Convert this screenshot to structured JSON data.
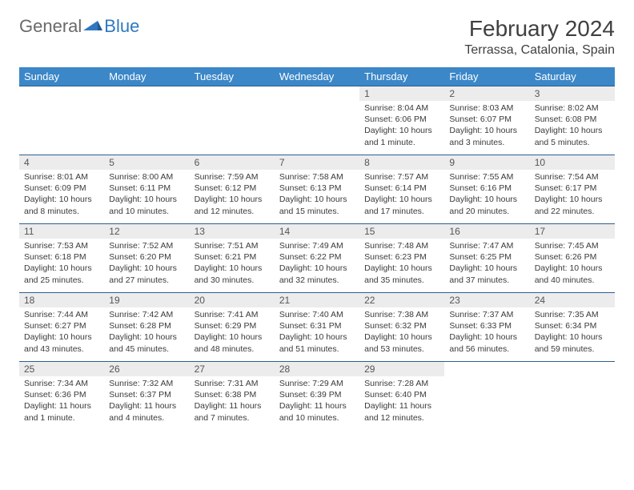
{
  "brand": {
    "part1": "General",
    "part2": "Blue"
  },
  "title": "February 2024",
  "location": "Terrassa, Catalonia, Spain",
  "colors": {
    "header_bg": "#3b87c8",
    "header_text": "#ffffff",
    "daynum_bg": "#ececec",
    "rule": "#2f5f8f",
    "body_text": "#3a3a3a",
    "logo_gray": "#6a6a6a",
    "logo_blue": "#2f78c0"
  },
  "weekdays": [
    "Sunday",
    "Monday",
    "Tuesday",
    "Wednesday",
    "Thursday",
    "Friday",
    "Saturday"
  ],
  "cells": [
    [
      {
        "n": "",
        "sr": "",
        "ss": "",
        "dl": ""
      },
      {
        "n": "",
        "sr": "",
        "ss": "",
        "dl": ""
      },
      {
        "n": "",
        "sr": "",
        "ss": "",
        "dl": ""
      },
      {
        "n": "",
        "sr": "",
        "ss": "",
        "dl": ""
      },
      {
        "n": "1",
        "sr": "Sunrise: 8:04 AM",
        "ss": "Sunset: 6:06 PM",
        "dl": "Daylight: 10 hours and 1 minute."
      },
      {
        "n": "2",
        "sr": "Sunrise: 8:03 AM",
        "ss": "Sunset: 6:07 PM",
        "dl": "Daylight: 10 hours and 3 minutes."
      },
      {
        "n": "3",
        "sr": "Sunrise: 8:02 AM",
        "ss": "Sunset: 6:08 PM",
        "dl": "Daylight: 10 hours and 5 minutes."
      }
    ],
    [
      {
        "n": "4",
        "sr": "Sunrise: 8:01 AM",
        "ss": "Sunset: 6:09 PM",
        "dl": "Daylight: 10 hours and 8 minutes."
      },
      {
        "n": "5",
        "sr": "Sunrise: 8:00 AM",
        "ss": "Sunset: 6:11 PM",
        "dl": "Daylight: 10 hours and 10 minutes."
      },
      {
        "n": "6",
        "sr": "Sunrise: 7:59 AM",
        "ss": "Sunset: 6:12 PM",
        "dl": "Daylight: 10 hours and 12 minutes."
      },
      {
        "n": "7",
        "sr": "Sunrise: 7:58 AM",
        "ss": "Sunset: 6:13 PM",
        "dl": "Daylight: 10 hours and 15 minutes."
      },
      {
        "n": "8",
        "sr": "Sunrise: 7:57 AM",
        "ss": "Sunset: 6:14 PM",
        "dl": "Daylight: 10 hours and 17 minutes."
      },
      {
        "n": "9",
        "sr": "Sunrise: 7:55 AM",
        "ss": "Sunset: 6:16 PM",
        "dl": "Daylight: 10 hours and 20 minutes."
      },
      {
        "n": "10",
        "sr": "Sunrise: 7:54 AM",
        "ss": "Sunset: 6:17 PM",
        "dl": "Daylight: 10 hours and 22 minutes."
      }
    ],
    [
      {
        "n": "11",
        "sr": "Sunrise: 7:53 AM",
        "ss": "Sunset: 6:18 PM",
        "dl": "Daylight: 10 hours and 25 minutes."
      },
      {
        "n": "12",
        "sr": "Sunrise: 7:52 AM",
        "ss": "Sunset: 6:20 PM",
        "dl": "Daylight: 10 hours and 27 minutes."
      },
      {
        "n": "13",
        "sr": "Sunrise: 7:51 AM",
        "ss": "Sunset: 6:21 PM",
        "dl": "Daylight: 10 hours and 30 minutes."
      },
      {
        "n": "14",
        "sr": "Sunrise: 7:49 AM",
        "ss": "Sunset: 6:22 PM",
        "dl": "Daylight: 10 hours and 32 minutes."
      },
      {
        "n": "15",
        "sr": "Sunrise: 7:48 AM",
        "ss": "Sunset: 6:23 PM",
        "dl": "Daylight: 10 hours and 35 minutes."
      },
      {
        "n": "16",
        "sr": "Sunrise: 7:47 AM",
        "ss": "Sunset: 6:25 PM",
        "dl": "Daylight: 10 hours and 37 minutes."
      },
      {
        "n": "17",
        "sr": "Sunrise: 7:45 AM",
        "ss": "Sunset: 6:26 PM",
        "dl": "Daylight: 10 hours and 40 minutes."
      }
    ],
    [
      {
        "n": "18",
        "sr": "Sunrise: 7:44 AM",
        "ss": "Sunset: 6:27 PM",
        "dl": "Daylight: 10 hours and 43 minutes."
      },
      {
        "n": "19",
        "sr": "Sunrise: 7:42 AM",
        "ss": "Sunset: 6:28 PM",
        "dl": "Daylight: 10 hours and 45 minutes."
      },
      {
        "n": "20",
        "sr": "Sunrise: 7:41 AM",
        "ss": "Sunset: 6:29 PM",
        "dl": "Daylight: 10 hours and 48 minutes."
      },
      {
        "n": "21",
        "sr": "Sunrise: 7:40 AM",
        "ss": "Sunset: 6:31 PM",
        "dl": "Daylight: 10 hours and 51 minutes."
      },
      {
        "n": "22",
        "sr": "Sunrise: 7:38 AM",
        "ss": "Sunset: 6:32 PM",
        "dl": "Daylight: 10 hours and 53 minutes."
      },
      {
        "n": "23",
        "sr": "Sunrise: 7:37 AM",
        "ss": "Sunset: 6:33 PM",
        "dl": "Daylight: 10 hours and 56 minutes."
      },
      {
        "n": "24",
        "sr": "Sunrise: 7:35 AM",
        "ss": "Sunset: 6:34 PM",
        "dl": "Daylight: 10 hours and 59 minutes."
      }
    ],
    [
      {
        "n": "25",
        "sr": "Sunrise: 7:34 AM",
        "ss": "Sunset: 6:36 PM",
        "dl": "Daylight: 11 hours and 1 minute."
      },
      {
        "n": "26",
        "sr": "Sunrise: 7:32 AM",
        "ss": "Sunset: 6:37 PM",
        "dl": "Daylight: 11 hours and 4 minutes."
      },
      {
        "n": "27",
        "sr": "Sunrise: 7:31 AM",
        "ss": "Sunset: 6:38 PM",
        "dl": "Daylight: 11 hours and 7 minutes."
      },
      {
        "n": "28",
        "sr": "Sunrise: 7:29 AM",
        "ss": "Sunset: 6:39 PM",
        "dl": "Daylight: 11 hours and 10 minutes."
      },
      {
        "n": "29",
        "sr": "Sunrise: 7:28 AM",
        "ss": "Sunset: 6:40 PM",
        "dl": "Daylight: 11 hours and 12 minutes."
      },
      {
        "n": "",
        "sr": "",
        "ss": "",
        "dl": ""
      },
      {
        "n": "",
        "sr": "",
        "ss": "",
        "dl": ""
      }
    ]
  ]
}
